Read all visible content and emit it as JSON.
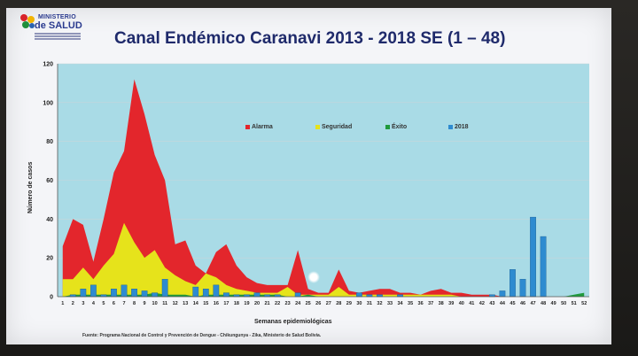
{
  "logo": {
    "line1": "MINISTERIO",
    "line2": "de SALUD"
  },
  "title": "Canal Endémico Caranavi 2013 - 2018 SE (1 – 48)",
  "source": "Fuente: Programa Nacional de Control y Prevención de Dengue - Chikungunya - Zika, Ministerio de Salud Bolivia.",
  "chart_data": {
    "type": "area",
    "title": "Canal Endémico Caranavi 2013 - 2018 SE (1 – 48)",
    "xlabel": "Semanas epidemiológicas",
    "ylabel": "Número de casos",
    "ylim": [
      0,
      120
    ],
    "yticks": [
      0,
      20,
      40,
      60,
      80,
      100,
      120
    ],
    "grid": true,
    "legend_position": "top-center",
    "x": [
      1,
      2,
      3,
      4,
      5,
      6,
      7,
      8,
      9,
      10,
      11,
      12,
      13,
      14,
      15,
      16,
      17,
      18,
      19,
      20,
      21,
      22,
      23,
      24,
      25,
      26,
      27,
      28,
      29,
      30,
      31,
      32,
      33,
      34,
      35,
      36,
      37,
      38,
      39,
      40,
      41,
      42,
      43,
      44,
      45,
      46,
      47,
      48,
      49,
      50,
      51,
      52
    ],
    "series": [
      {
        "name": "Alarma",
        "kind": "area",
        "color": "#e3262c",
        "values": [
          26,
          40,
          37,
          18,
          40,
          64,
          75,
          112,
          94,
          73,
          60,
          27,
          29,
          16,
          12,
          23,
          27,
          16,
          10,
          7,
          6,
          6,
          6,
          24,
          4,
          2,
          2,
          14,
          3,
          2,
          3,
          4,
          4,
          2,
          2,
          1,
          3,
          4,
          2,
          2,
          1,
          1,
          1,
          0,
          0,
          0,
          0,
          0,
          0,
          0,
          0,
          0
        ]
      },
      {
        "name": "Seguridad",
        "kind": "area",
        "color": "#e6e31b",
        "values": [
          9,
          9,
          15,
          9,
          16,
          22,
          38,
          28,
          20,
          24,
          15,
          11,
          8,
          6,
          12,
          10,
          6,
          4,
          3,
          2,
          2,
          2,
          5,
          1,
          1,
          1,
          1,
          5,
          1,
          1,
          1,
          1,
          1,
          1,
          1,
          1,
          1,
          1,
          1,
          0,
          0,
          0,
          0,
          0,
          0,
          0,
          0,
          0,
          0,
          0,
          0,
          0
        ]
      },
      {
        "name": "Éxito",
        "kind": "area",
        "color": "#1f9a3c",
        "values": [
          0,
          1,
          1,
          1,
          1,
          1,
          1,
          1,
          1,
          2,
          1,
          1,
          1,
          0,
          1,
          1,
          1,
          1,
          1,
          1,
          1,
          1,
          0,
          0,
          1,
          0,
          0,
          0,
          0,
          0,
          0,
          0,
          0,
          0,
          0,
          0,
          0,
          0,
          0,
          0,
          0,
          0,
          0,
          0,
          0,
          0,
          0,
          0,
          0,
          0,
          1,
          2
        ]
      },
      {
        "name": "2018",
        "kind": "bar",
        "color": "#2e8bd0",
        "values": [
          0,
          1,
          4,
          6,
          1,
          4,
          6,
          4,
          3,
          2,
          9,
          0,
          0,
          5,
          4,
          6,
          2,
          1,
          1,
          2,
          1,
          1,
          0,
          2,
          0,
          0,
          0,
          0,
          0,
          2,
          1,
          1,
          0,
          1,
          0,
          0,
          0,
          0,
          0,
          0,
          0,
          0,
          1,
          3,
          14,
          9,
          41,
          31,
          0,
          0,
          0,
          0
        ]
      }
    ]
  }
}
